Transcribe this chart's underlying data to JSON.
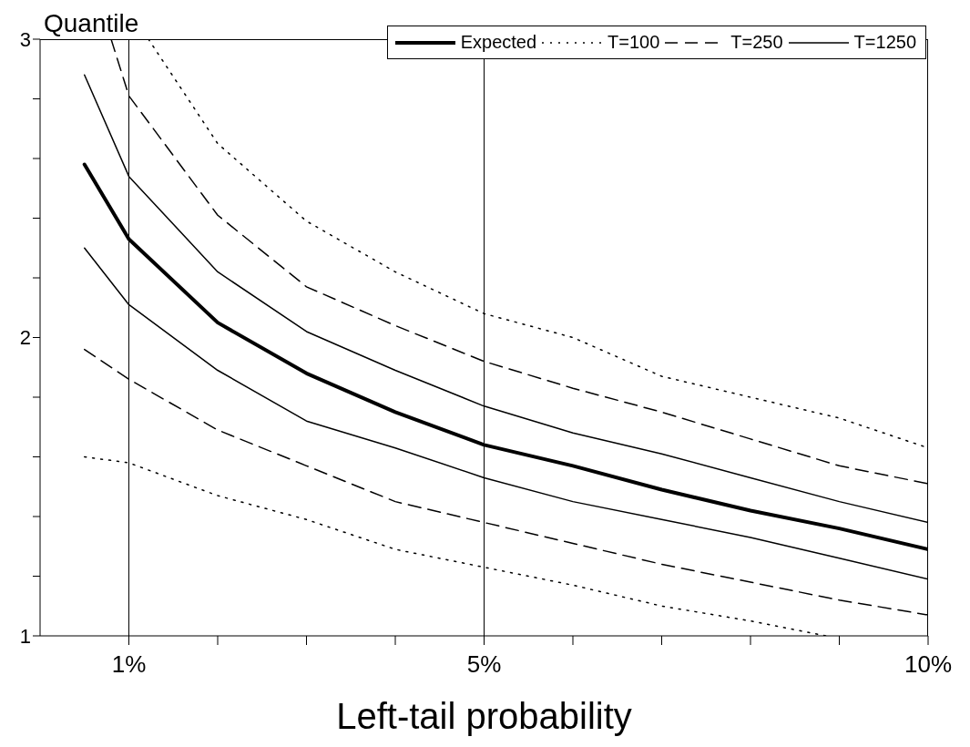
{
  "chart_data": {
    "type": "line",
    "xlabel": "Left-tail probability",
    "ylabel": "Quantile",
    "xlim": [
      0,
      10
    ],
    "ylim": [
      1,
      3
    ],
    "xticks": [
      {
        "value": 1,
        "label": "1%"
      },
      {
        "value": 2,
        "label": null
      },
      {
        "value": 3,
        "label": null
      },
      {
        "value": 4,
        "label": null
      },
      {
        "value": 5,
        "label": "5%"
      },
      {
        "value": 6,
        "label": null
      },
      {
        "value": 7,
        "label": null
      },
      {
        "value": 8,
        "label": null
      },
      {
        "value": 9,
        "label": null
      },
      {
        "value": 10,
        "label": "10%"
      }
    ],
    "yticks": [
      1,
      {
        "value": 1.2,
        "label": null
      },
      {
        "value": 1.4,
        "label": null
      },
      {
        "value": 1.6,
        "label": null
      },
      {
        "value": 1.8,
        "label": null
      },
      2,
      {
        "value": 2.2,
        "label": null
      },
      {
        "value": 2.4,
        "label": null
      },
      {
        "value": 2.6,
        "label": null
      },
      {
        "value": 2.8,
        "label": null
      },
      3
    ],
    "legend": "top right",
    "marker": "none",
    "ref_lines": [
      {
        "axis": "x",
        "value": 1,
        "label": null,
        "color": "#000000"
      },
      {
        "axis": "x",
        "value": 5,
        "label": null,
        "color": "#000000"
      }
    ],
    "series": [
      {
        "name": "Expected",
        "color": "#000000",
        "line_style": "solid",
        "x": [
          0.5,
          1,
          2,
          3,
          4,
          5,
          6,
          7,
          8,
          9,
          10
        ],
        "values": [
          2.58,
          2.33,
          2.05,
          1.88,
          1.75,
          1.64,
          1.57,
          1.49,
          1.42,
          1.36,
          1.29
        ]
      },
      {
        "name": "T=100",
        "color": "#000000",
        "line_style": "dotted",
        "x": [
          1.22,
          2,
          3,
          4,
          5,
          6,
          7,
          8,
          9,
          10
        ],
        "values": [
          3,
          2.65,
          2.39,
          2.22,
          2.08,
          2.0,
          1.87,
          1.8,
          1.73,
          1.63
        ]
      },
      {
        "color": "#000000",
        "line_style": "dotted",
        "x": [
          0.5,
          1,
          2,
          3,
          4,
          5,
          6,
          7,
          8,
          8.85
        ],
        "values": [
          1.6,
          1.58,
          1.47,
          1.39,
          1.29,
          1.23,
          1.17,
          1.1,
          1.05,
          1
        ]
      },
      {
        "name": "T=250",
        "color": "#000000",
        "line_style": "dashed",
        "x": [
          0.8,
          1,
          2,
          3,
          4,
          5,
          6,
          7,
          8,
          9,
          10
        ],
        "values": [
          3,
          2.81,
          2.41,
          2.17,
          2.04,
          1.92,
          1.83,
          1.75,
          1.66,
          1.57,
          1.51
        ]
      },
      {
        "color": "#000000",
        "line_style": "dashed",
        "x": [
          0.5,
          1,
          2,
          3,
          4,
          5,
          6,
          7,
          8,
          9,
          10
        ],
        "values": [
          1.96,
          1.86,
          1.69,
          1.57,
          1.45,
          1.38,
          1.31,
          1.24,
          1.18,
          1.12,
          1.07
        ]
      },
      {
        "name": "T=1250",
        "color": "#000000",
        "line_style": "solid",
        "x": [
          0.5,
          1,
          2,
          3,
          4,
          5,
          6,
          7,
          8,
          9,
          10
        ],
        "values": [
          2.88,
          2.54,
          2.22,
          2.02,
          1.89,
          1.77,
          1.68,
          1.61,
          1.53,
          1.45,
          1.38
        ]
      },
      {
        "color": "#000000",
        "line_style": "solid",
        "x": [
          0.5,
          1,
          2,
          3,
          4,
          5,
          6,
          7,
          8,
          9,
          10
        ],
        "values": [
          2.3,
          2.11,
          1.89,
          1.72,
          1.63,
          1.53,
          1.45,
          1.39,
          1.33,
          1.26,
          1.19
        ]
      }
    ]
  }
}
